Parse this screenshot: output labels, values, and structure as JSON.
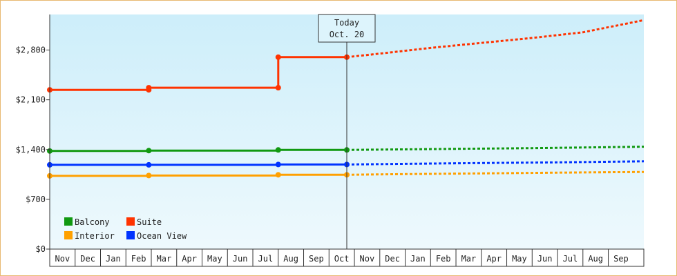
{
  "chart_data": {
    "type": "line",
    "title": "",
    "xlabel": "",
    "ylabel": "",
    "ylim": [
      0,
      3300
    ],
    "y_ticks": [
      {
        "value": 0,
        "label": "$0"
      },
      {
        "value": 700,
        "label": "$700"
      },
      {
        "value": 1400,
        "label": "$1,400"
      },
      {
        "value": 2100,
        "label": "$2,100"
      },
      {
        "value": 2800,
        "label": "$2,800"
      }
    ],
    "x_month_labels": [
      "Nov",
      "Dec",
      "Jan",
      "Feb",
      "Mar",
      "Apr",
      "May",
      "Jun",
      "Jul",
      "Aug",
      "Sep",
      "Oct",
      "Nov",
      "Dec",
      "Jan",
      "Feb",
      "Mar",
      "Apr",
      "May",
      "Jun",
      "Jul",
      "Aug",
      "Sep"
    ],
    "x_range": [
      0,
      23.4
    ],
    "grid": false,
    "background": "light-blue gradient",
    "today": {
      "x": 11.7,
      "line1": "Today",
      "line2": "Oct. 20"
    },
    "legend": {
      "placement": "bottom-left"
    },
    "series": [
      {
        "name": "Suite",
        "color": "#ff3300",
        "actual": [
          [
            0,
            2240
          ],
          [
            3.9,
            2240
          ],
          [
            3.9,
            2270
          ],
          [
            9.0,
            2270
          ],
          [
            9.0,
            2700
          ],
          [
            11.7,
            2700
          ]
        ],
        "markers": [
          [
            0,
            2240
          ],
          [
            3.9,
            2240
          ],
          [
            3.9,
            2270
          ],
          [
            9.0,
            2270
          ],
          [
            9.0,
            2700
          ],
          [
            11.7,
            2700
          ]
        ],
        "forecast": [
          [
            11.7,
            2700
          ],
          [
            13,
            2750
          ],
          [
            15,
            2830
          ],
          [
            17,
            2900
          ],
          [
            19,
            2970
          ],
          [
            21,
            3050
          ],
          [
            23.4,
            3220
          ]
        ]
      },
      {
        "name": "Balcony",
        "color": "#119911",
        "actual": [
          [
            0,
            1380
          ],
          [
            3.9,
            1380
          ],
          [
            3.9,
            1385
          ],
          [
            9.0,
            1385
          ],
          [
            9.0,
            1395
          ],
          [
            11.7,
            1395
          ]
        ],
        "markers": [
          [
            0,
            1380
          ],
          [
            3.9,
            1385
          ],
          [
            9.0,
            1395
          ],
          [
            11.7,
            1395
          ]
        ],
        "forecast": [
          [
            11.7,
            1395
          ],
          [
            13,
            1400
          ],
          [
            16,
            1410
          ],
          [
            19,
            1420
          ],
          [
            23.4,
            1440
          ]
        ]
      },
      {
        "name": "Ocean View",
        "color": "#0033ff",
        "actual": [
          [
            0,
            1185
          ],
          [
            3.9,
            1185
          ],
          [
            9.0,
            1185
          ],
          [
            9.0,
            1190
          ],
          [
            11.7,
            1190
          ]
        ],
        "markers": [
          [
            0,
            1185
          ],
          [
            3.9,
            1185
          ],
          [
            9.0,
            1190
          ],
          [
            11.7,
            1190
          ]
        ],
        "forecast": [
          [
            11.7,
            1190
          ],
          [
            14,
            1200
          ],
          [
            17,
            1210
          ],
          [
            20,
            1220
          ],
          [
            23.4,
            1235
          ]
        ]
      },
      {
        "name": "Interior",
        "color": "#ffa000",
        "actual": [
          [
            0,
            1030
          ],
          [
            3.9,
            1030
          ],
          [
            3.9,
            1035
          ],
          [
            9.0,
            1035
          ],
          [
            9.0,
            1045
          ],
          [
            11.7,
            1045
          ]
        ],
        "markers": [
          [
            0,
            1030
          ],
          [
            3.9,
            1035
          ],
          [
            9.0,
            1045
          ],
          [
            11.7,
            1045
          ]
        ],
        "forecast": [
          [
            11.7,
            1045
          ],
          [
            14,
            1055
          ],
          [
            17,
            1065
          ],
          [
            20,
            1075
          ],
          [
            23.4,
            1085
          ]
        ]
      }
    ],
    "legend_order": [
      "Balcony",
      "Suite",
      "Interior",
      "Ocean View"
    ]
  }
}
